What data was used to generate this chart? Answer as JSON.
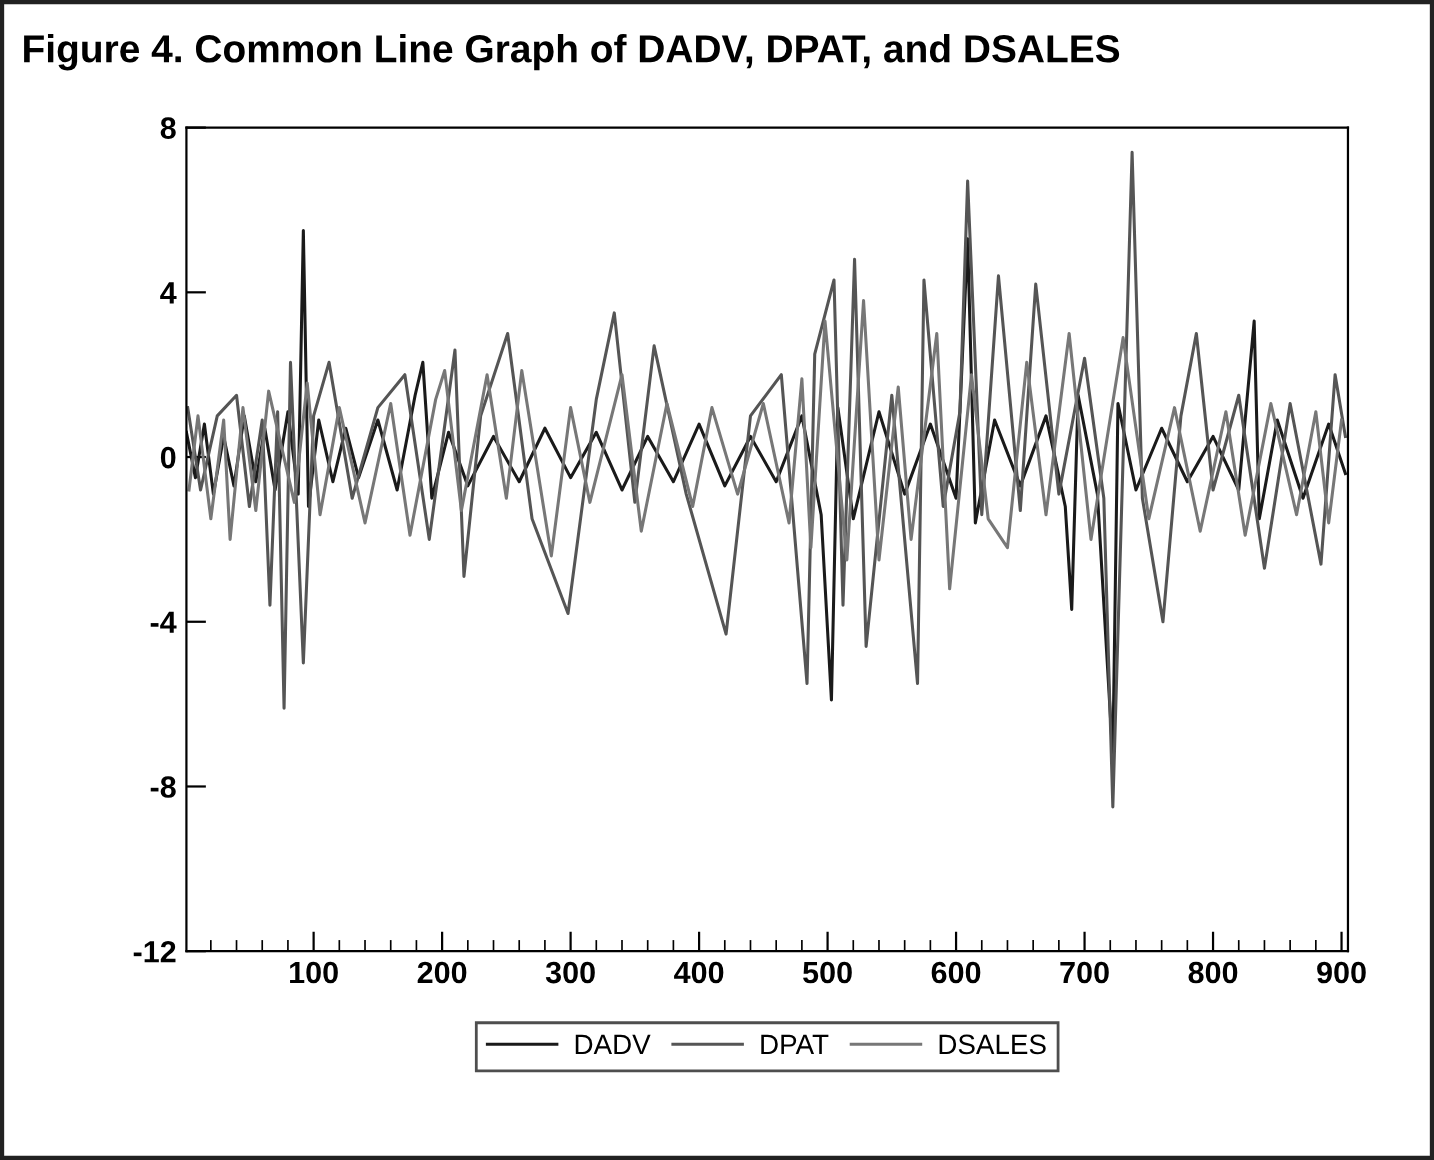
{
  "chart_data": {
    "type": "line",
    "title": "Figure 4. Common Line Graph of DADV, DPAT, and DSALES",
    "xlim": [
      1,
      905
    ],
    "xticks": [
      100,
      200,
      300,
      400,
      500,
      600,
      700,
      800,
      900
    ],
    "ylim": [
      -12,
      8
    ],
    "yticks": [
      -12,
      -8,
      -4,
      0,
      4,
      8
    ],
    "grid": false,
    "legend": "bottom",
    "line_style": "solid",
    "marker": "none",
    "series": [
      {
        "name": "DADV",
        "color": "#1a1a1a",
        "x": [
          1,
          8,
          15,
          22,
          30,
          38,
          46,
          55,
          62,
          70,
          80,
          88,
          92,
          96,
          104,
          115,
          125,
          135,
          150,
          165,
          179,
          185,
          192,
          205,
          220,
          240,
          260,
          280,
          300,
          320,
          340,
          360,
          380,
          400,
          420,
          440,
          460,
          480,
          495,
          503,
          508,
          520,
          540,
          560,
          580,
          600,
          609,
          615,
          630,
          650,
          670,
          685,
          690,
          695,
          710,
          722,
          726,
          740,
          760,
          780,
          800,
          820,
          832,
          836,
          850,
          870,
          890,
          903
        ],
        "values": [
          0.6,
          -0.5,
          0.8,
          -0.9,
          0.5,
          -0.7,
          1.0,
          -0.6,
          0.7,
          -0.8,
          1.1,
          -0.9,
          5.5,
          -1.2,
          0.9,
          -0.6,
          0.7,
          -0.5,
          0.9,
          -0.8,
          1.5,
          2.3,
          -1.0,
          0.6,
          -0.7,
          0.5,
          -0.6,
          0.7,
          -0.5,
          0.6,
          -0.8,
          0.5,
          -0.6,
          0.8,
          -0.7,
          0.5,
          -0.6,
          1.0,
          -1.4,
          -5.9,
          1.2,
          -1.5,
          1.1,
          -0.9,
          0.8,
          -1.0,
          5.3,
          -1.6,
          0.9,
          -0.7,
          1.0,
          -1.2,
          -3.7,
          1.5,
          -0.9,
          -7.3,
          1.3,
          -0.8,
          0.7,
          -0.6,
          0.5,
          -0.8,
          3.3,
          -1.5,
          0.9,
          -1.0,
          0.8,
          -0.4
        ]
      },
      {
        "name": "DPAT",
        "color": "#555555",
        "x": [
          2,
          12,
          25,
          40,
          50,
          60,
          66,
          72,
          77,
          82,
          92,
          100,
          112,
          130,
          150,
          171,
          190,
          210,
          217,
          230,
          251,
          270,
          298,
          320,
          334,
          350,
          365,
          390,
          421,
          440,
          464,
          484,
          490,
          505,
          512,
          521,
          530,
          550,
          570,
          575,
          590,
          603,
          609,
          620,
          633,
          650,
          662,
          680,
          700,
          715,
          722,
          737,
          745,
          761,
          775,
          787,
          800,
          820,
          840,
          860,
          884,
          895,
          903
        ],
        "values": [
          1.2,
          -0.8,
          1.0,
          1.5,
          -1.2,
          0.9,
          -3.6,
          1.1,
          -6.1,
          2.3,
          -5.0,
          1.0,
          2.3,
          -1.0,
          1.2,
          2.0,
          -2.0,
          2.6,
          -2.9,
          1.0,
          3.0,
          -1.5,
          -3.8,
          1.4,
          3.5,
          -1.1,
          2.7,
          -0.9,
          -4.3,
          1.0,
          2.0,
          -5.5,
          2.5,
          4.3,
          -3.6,
          4.8,
          -4.6,
          1.5,
          -5.5,
          4.3,
          -1.2,
          1.1,
          6.7,
          -1.4,
          4.4,
          -1.3,
          4.2,
          -0.9,
          2.4,
          -1.0,
          -8.5,
          7.4,
          -1.0,
          -4.0,
          1.0,
          3.0,
          -0.8,
          1.5,
          -2.7,
          1.3,
          -2.6,
          2.0,
          0.5
        ]
      },
      {
        "name": "DSALES",
        "color": "#777777",
        "x": [
          3,
          10,
          20,
          30,
          35,
          45,
          55,
          65,
          85,
          95,
          105,
          120,
          140,
          160,
          175,
          195,
          202,
          215,
          235,
          250,
          262,
          285,
          300,
          315,
          340,
          355,
          375,
          395,
          410,
          430,
          450,
          470,
          480,
          487,
          498,
          515,
          528,
          540,
          555,
          565,
          585,
          595,
          612,
          625,
          640,
          655,
          670,
          688,
          705,
          730,
          750,
          770,
          790,
          810,
          825,
          845,
          865,
          880,
          890,
          900
        ],
        "values": [
          -0.8,
          1.0,
          -1.5,
          0.9,
          -2.0,
          1.2,
          -1.3,
          1.6,
          -1.1,
          1.8,
          -1.4,
          1.2,
          -1.6,
          1.3,
          -1.9,
          1.4,
          2.1,
          -1.3,
          2.0,
          -1.0,
          2.1,
          -2.4,
          1.2,
          -1.1,
          2.0,
          -1.8,
          1.3,
          -1.2,
          1.2,
          -0.9,
          1.3,
          -1.6,
          1.9,
          -2.2,
          3.3,
          -2.5,
          3.8,
          -2.5,
          1.7,
          -2.0,
          3.0,
          -3.2,
          2.0,
          -1.5,
          -2.2,
          2.3,
          -1.4,
          3.0,
          -2.0,
          2.9,
          -1.5,
          1.2,
          -1.8,
          1.1,
          -1.9,
          1.3,
          -1.4,
          1.1,
          -1.6,
          0.9
        ]
      }
    ]
  }
}
